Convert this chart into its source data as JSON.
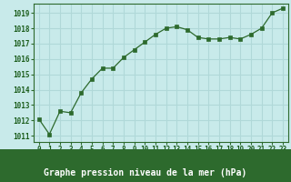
{
  "x": [
    0,
    1,
    2,
    3,
    4,
    5,
    6,
    7,
    8,
    9,
    10,
    11,
    12,
    13,
    14,
    15,
    16,
    17,
    18,
    19,
    20,
    21,
    22,
    23
  ],
  "y": [
    1012.1,
    1011.1,
    1012.6,
    1012.5,
    1013.8,
    1014.7,
    1015.4,
    1015.4,
    1016.1,
    1016.6,
    1017.1,
    1017.6,
    1018.0,
    1018.1,
    1017.9,
    1017.4,
    1017.3,
    1017.3,
    1017.4,
    1017.3,
    1017.6,
    1018.0,
    1019.0,
    1019.3
  ],
  "ylim_min": 1010.6,
  "ylim_max": 1019.6,
  "yticks": [
    1011,
    1012,
    1013,
    1014,
    1015,
    1016,
    1017,
    1018,
    1019
  ],
  "xticks": [
    0,
    1,
    2,
    3,
    4,
    5,
    6,
    7,
    8,
    9,
    10,
    11,
    12,
    13,
    14,
    15,
    16,
    17,
    18,
    19,
    20,
    21,
    22,
    23
  ],
  "line_color": "#2d6a2d",
  "marker_color": "#2d6a2d",
  "bg_color": "#c8eaea",
  "grid_color": "#b0d8d8",
  "xlabel": "Graphe pression niveau de la mer (hPa)",
  "xlabel_color": "#1a5c1a",
  "xlabel_fontsize": 7.0,
  "tick_color": "#1a5c1a",
  "tick_fontsize": 5.5,
  "border_color": "#2d6a2d",
  "bottom_bar_color": "#2d6a2d",
  "bottom_bar_height": 0.18
}
